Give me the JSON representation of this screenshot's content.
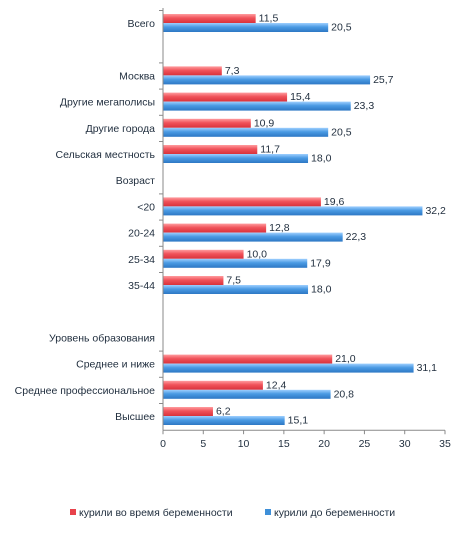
{
  "chart_data": {
    "type": "bar",
    "orientation": "horizontal",
    "xlim": [
      0,
      35
    ],
    "xticks": [
      "0",
      "5",
      "10",
      "15",
      "20",
      "25",
      "30",
      "35"
    ],
    "grid": false,
    "legend_position": "bottom",
    "series": [
      {
        "name": "курили во время беременности",
        "color": "#e8424b"
      },
      {
        "name": "курили до беременности",
        "color": "#3e8fd8"
      }
    ],
    "rows": [
      {
        "label": "Всего",
        "during": 11.5,
        "before": 20.5,
        "during_label": "11,5",
        "before_label": "20,5"
      },
      {
        "label": "",
        "heading": true
      },
      {
        "label": "Москва",
        "during": 7.3,
        "before": 25.7,
        "during_label": "7,3",
        "before_label": "25,7"
      },
      {
        "label": "Другие мегаполисы",
        "during": 15.4,
        "before": 23.3,
        "during_label": "15,4",
        "before_label": "23,3"
      },
      {
        "label": "Другие города",
        "during": 10.9,
        "before": 20.5,
        "during_label": "10,9",
        "before_label": "20,5"
      },
      {
        "label": "Сельская местность",
        "during": 11.7,
        "before": 18.0,
        "during_label": "11,7",
        "before_label": "18,0"
      },
      {
        "label": "Возраст",
        "heading": true
      },
      {
        "label": "<20",
        "during": 19.6,
        "before": 32.2,
        "during_label": "19,6",
        "before_label": "32,2"
      },
      {
        "label": "20-24",
        "during": 12.8,
        "before": 22.3,
        "during_label": "12,8",
        "before_label": "22,3"
      },
      {
        "label": "25-34",
        "during": 10.0,
        "before": 17.9,
        "during_label": "10,0",
        "before_label": "17,9"
      },
      {
        "label": "35-44",
        "during": 7.5,
        "before": 18.0,
        "during_label": "7,5",
        "before_label": "18,0"
      },
      {
        "label": "",
        "heading": true
      },
      {
        "label": "Уровень образования",
        "heading": true
      },
      {
        "label": "Среднее и ниже",
        "during": 21.0,
        "before": 31.1,
        "during_label": "21,0",
        "before_label": "31,1"
      },
      {
        "label": "Среднее профессиональное",
        "during": 12.4,
        "before": 20.8,
        "during_label": "12,4",
        "before_label": "20,8"
      },
      {
        "label": "Высшее",
        "during": 6.2,
        "before": 15.1,
        "during_label": "6,2",
        "before_label": "15,1"
      }
    ]
  }
}
